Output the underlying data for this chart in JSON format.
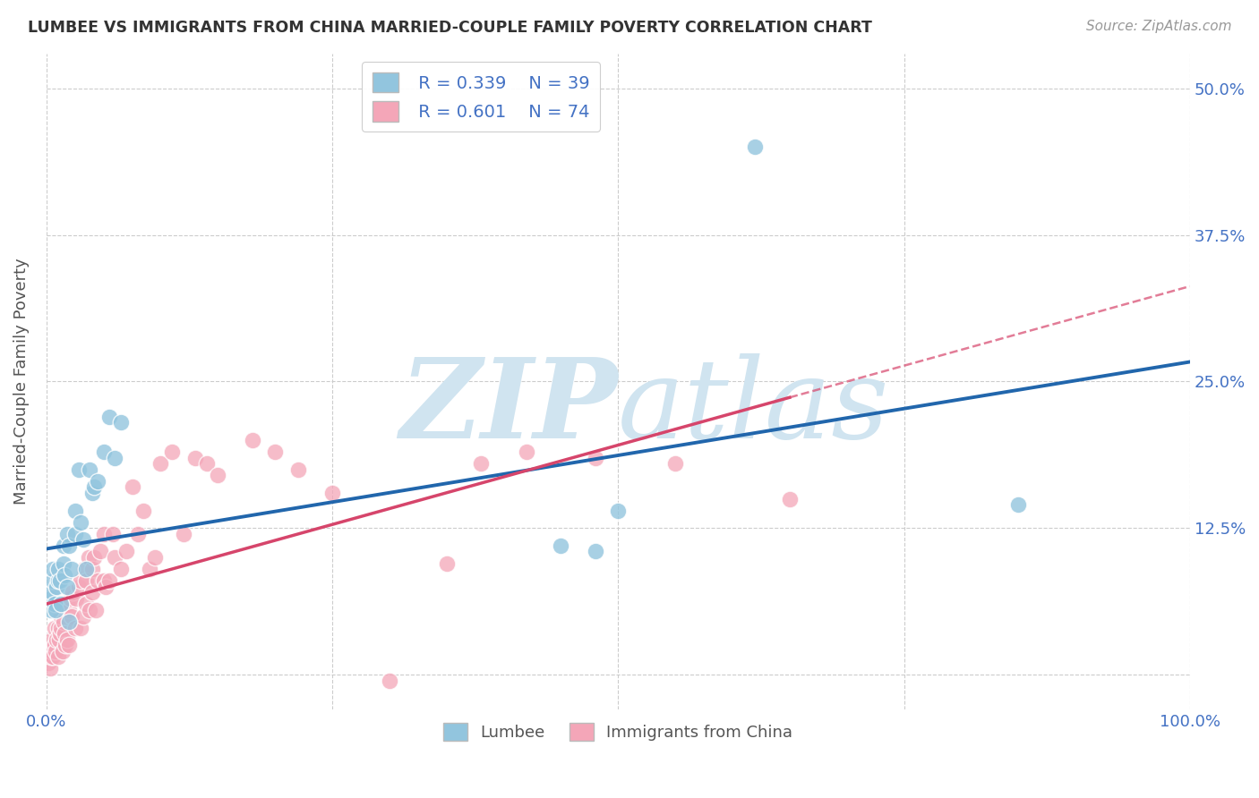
{
  "title": "LUMBEE VS IMMIGRANTS FROM CHINA MARRIED-COUPLE FAMILY POVERTY CORRELATION CHART",
  "source_text": "Source: ZipAtlas.com",
  "ylabel": "Married-Couple Family Poverty",
  "xlim": [
    0,
    1.0
  ],
  "ylim": [
    -0.03,
    0.53
  ],
  "xticks": [
    0.0,
    0.25,
    0.5,
    0.75,
    1.0
  ],
  "xtick_labels": [
    "0.0%",
    "",
    "",
    "",
    "100.0%"
  ],
  "yticks": [
    0.0,
    0.125,
    0.25,
    0.375,
    0.5
  ],
  "ytick_labels_right": [
    "",
    "12.5%",
    "25.0%",
    "37.5%",
    "50.0%"
  ],
  "lumbee_R": 0.339,
  "lumbee_N": 39,
  "china_R": 0.601,
  "china_N": 74,
  "lumbee_color": "#92c5de",
  "china_color": "#f4a6b8",
  "lumbee_line_color": "#2166ac",
  "china_line_color": "#d6456b",
  "watermark_color": "#d0e4f0",
  "background_color": "#ffffff",
  "lumbee_x": [
    0.003,
    0.004,
    0.005,
    0.006,
    0.006,
    0.007,
    0.008,
    0.009,
    0.01,
    0.01,
    0.012,
    0.013,
    0.015,
    0.015,
    0.016,
    0.018,
    0.018,
    0.02,
    0.02,
    0.022,
    0.025,
    0.025,
    0.028,
    0.03,
    0.032,
    0.035,
    0.038,
    0.04,
    0.042,
    0.045,
    0.05,
    0.055,
    0.06,
    0.065,
    0.45,
    0.48,
    0.5,
    0.62,
    0.85
  ],
  "lumbee_y": [
    0.065,
    0.055,
    0.07,
    0.08,
    0.09,
    0.06,
    0.055,
    0.075,
    0.08,
    0.09,
    0.08,
    0.06,
    0.095,
    0.11,
    0.085,
    0.12,
    0.075,
    0.045,
    0.11,
    0.09,
    0.12,
    0.14,
    0.175,
    0.13,
    0.115,
    0.09,
    0.175,
    0.155,
    0.16,
    0.165,
    0.19,
    0.22,
    0.185,
    0.215,
    0.11,
    0.105,
    0.14,
    0.45,
    0.145
  ],
  "china_x": [
    0.002,
    0.003,
    0.004,
    0.005,
    0.005,
    0.006,
    0.007,
    0.007,
    0.008,
    0.009,
    0.01,
    0.01,
    0.011,
    0.012,
    0.013,
    0.013,
    0.014,
    0.015,
    0.016,
    0.017,
    0.018,
    0.018,
    0.02,
    0.02,
    0.021,
    0.022,
    0.023,
    0.025,
    0.026,
    0.028,
    0.03,
    0.03,
    0.032,
    0.033,
    0.035,
    0.035,
    0.037,
    0.038,
    0.04,
    0.04,
    0.042,
    0.043,
    0.045,
    0.047,
    0.05,
    0.05,
    0.052,
    0.055,
    0.058,
    0.06,
    0.065,
    0.07,
    0.075,
    0.08,
    0.085,
    0.09,
    0.095,
    0.1,
    0.11,
    0.12,
    0.13,
    0.14,
    0.15,
    0.18,
    0.2,
    0.22,
    0.25,
    0.3,
    0.35,
    0.38,
    0.42,
    0.48,
    0.55,
    0.65
  ],
  "china_y": [
    0.01,
    0.005,
    0.015,
    0.02,
    0.03,
    0.015,
    0.025,
    0.04,
    0.02,
    0.03,
    0.015,
    0.04,
    0.03,
    0.035,
    0.04,
    0.05,
    0.02,
    0.045,
    0.035,
    0.025,
    0.03,
    0.06,
    0.025,
    0.055,
    0.065,
    0.05,
    0.07,
    0.04,
    0.065,
    0.075,
    0.04,
    0.08,
    0.05,
    0.09,
    0.06,
    0.08,
    0.1,
    0.055,
    0.07,
    0.09,
    0.1,
    0.055,
    0.08,
    0.105,
    0.08,
    0.12,
    0.075,
    0.08,
    0.12,
    0.1,
    0.09,
    0.105,
    0.16,
    0.12,
    0.14,
    0.09,
    0.1,
    0.18,
    0.19,
    0.12,
    0.185,
    0.18,
    0.17,
    0.2,
    0.19,
    0.175,
    0.155,
    -0.005,
    0.095,
    0.18,
    0.19,
    0.185,
    0.18,
    0.15
  ]
}
